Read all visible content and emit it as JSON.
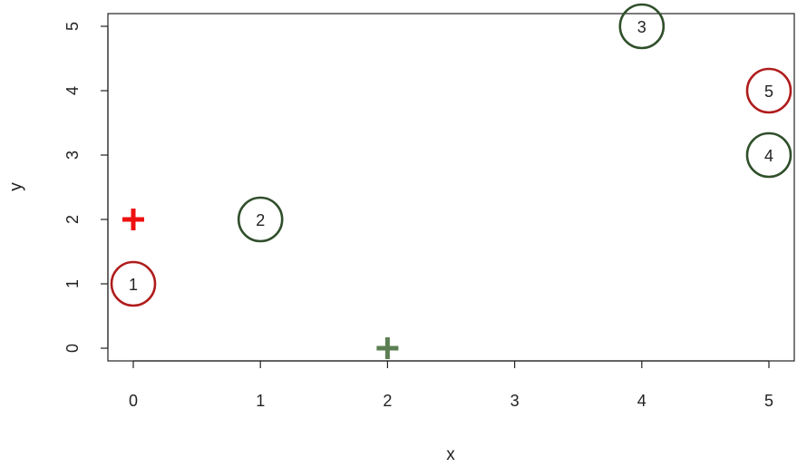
{
  "chart_data": {
    "type": "scatter",
    "xlabel": "x",
    "ylabel": "y",
    "xlim": [
      0,
      5
    ],
    "ylim": [
      0,
      5
    ],
    "x_ticks": [
      "0",
      "1",
      "2",
      "3",
      "4",
      "5"
    ],
    "y_ticks": [
      "0",
      "1",
      "2",
      "3",
      "4",
      "5"
    ],
    "grid": false,
    "points": [
      {
        "label": "1",
        "x": 0,
        "y": 1,
        "color": "#b01c1c"
      },
      {
        "label": "2",
        "x": 1,
        "y": 2,
        "color": "#2f4f2a"
      },
      {
        "label": "3",
        "x": 4,
        "y": 5,
        "color": "#2f4f2a"
      },
      {
        "label": "4",
        "x": 5,
        "y": 3,
        "color": "#2f4f2a"
      },
      {
        "label": "5",
        "x": 5,
        "y": 4,
        "color": "#b01c1c"
      }
    ],
    "centroids": [
      {
        "x": 0,
        "y": 2,
        "color": "#ee1111",
        "marker": "plus"
      },
      {
        "x": 2,
        "y": 0,
        "color": "#5b7f52",
        "marker": "plus"
      }
    ]
  }
}
